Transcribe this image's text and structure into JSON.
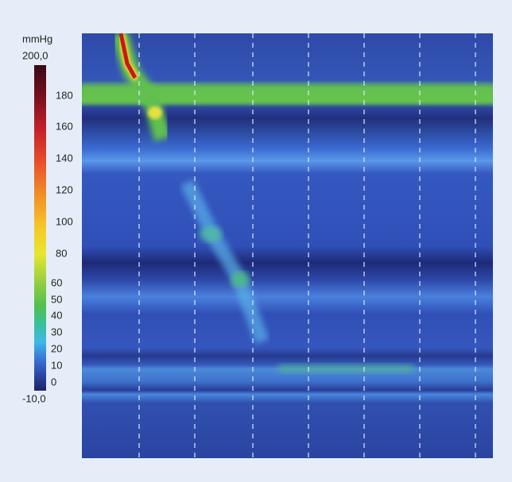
{
  "colorbar": {
    "unit": "mmHg",
    "ticks": [
      "200,0",
      "180",
      "160",
      "140",
      "120",
      "100",
      "80",
      "60",
      "50",
      "40",
      "30",
      "20",
      "10",
      "0",
      "-10,0"
    ]
  }
}
